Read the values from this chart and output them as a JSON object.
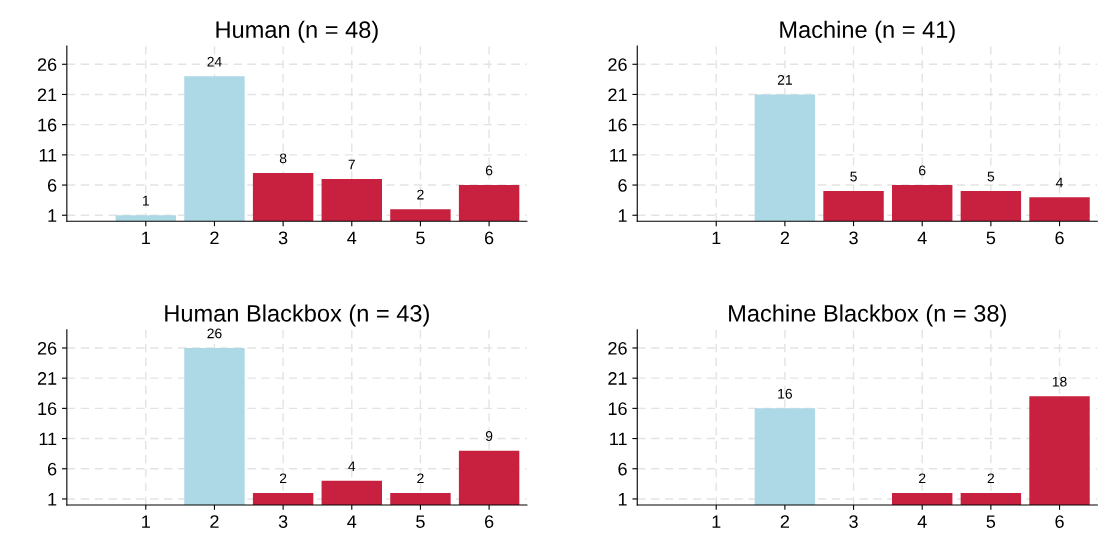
{
  "chart_data": [
    {
      "type": "bar",
      "title": "Human (n = 48)",
      "categories": [
        "1",
        "2",
        "3",
        "4",
        "5",
        "6"
      ],
      "values": [
        1,
        24,
        8,
        7,
        2,
        6
      ],
      "colors": [
        "#add8e6",
        "#add8e6",
        "#c8203f",
        "#c8203f",
        "#c8203f",
        "#c8203f"
      ],
      "value_labels": [
        "1",
        "24",
        "8",
        "7",
        "2",
        "6"
      ],
      "ylim": [
        0,
        29
      ],
      "yticks": [
        1,
        6,
        11,
        16,
        21,
        26
      ],
      "grid": true
    },
    {
      "type": "bar",
      "title": "Human Blackbox (n = 43)",
      "categories": [
        "1",
        "2",
        "3",
        "4",
        "5",
        "6"
      ],
      "values": [
        0,
        26,
        2,
        4,
        2,
        9
      ],
      "colors": [
        "#add8e6",
        "#add8e6",
        "#c8203f",
        "#c8203f",
        "#c8203f",
        "#c8203f"
      ],
      "value_labels": [
        null,
        "26",
        "2",
        "4",
        "2",
        "9"
      ],
      "ylim": [
        0,
        29
      ],
      "yticks": [
        1,
        6,
        11,
        16,
        21,
        26
      ],
      "grid": true
    },
    {
      "type": "bar",
      "title": "Machine (n = 41)",
      "categories": [
        "1",
        "2",
        "3",
        "4",
        "5",
        "6"
      ],
      "values": [
        0,
        21,
        5,
        6,
        5,
        4
      ],
      "colors": [
        "#add8e6",
        "#add8e6",
        "#c8203f",
        "#c8203f",
        "#c8203f",
        "#c8203f"
      ],
      "value_labels": [
        null,
        "21",
        "5",
        "6",
        "5",
        "4"
      ],
      "ylim": [
        0,
        29
      ],
      "yticks": [
        1,
        6,
        11,
        16,
        21,
        26
      ],
      "grid": true
    },
    {
      "type": "bar",
      "title": "Machine Blackbox (n = 38)",
      "categories": [
        "1",
        "2",
        "3",
        "4",
        "5",
        "6"
      ],
      "values": [
        0,
        16,
        0,
        2,
        2,
        18
      ],
      "colors": [
        "#add8e6",
        "#add8e6",
        "#c8203f",
        "#c8203f",
        "#c8203f",
        "#c8203f"
      ],
      "value_labels": [
        null,
        "16",
        null,
        "2",
        "2",
        "18"
      ],
      "ylim": [
        0,
        29
      ],
      "yticks": [
        1,
        6,
        11,
        16,
        21,
        26
      ],
      "grid": true
    }
  ]
}
